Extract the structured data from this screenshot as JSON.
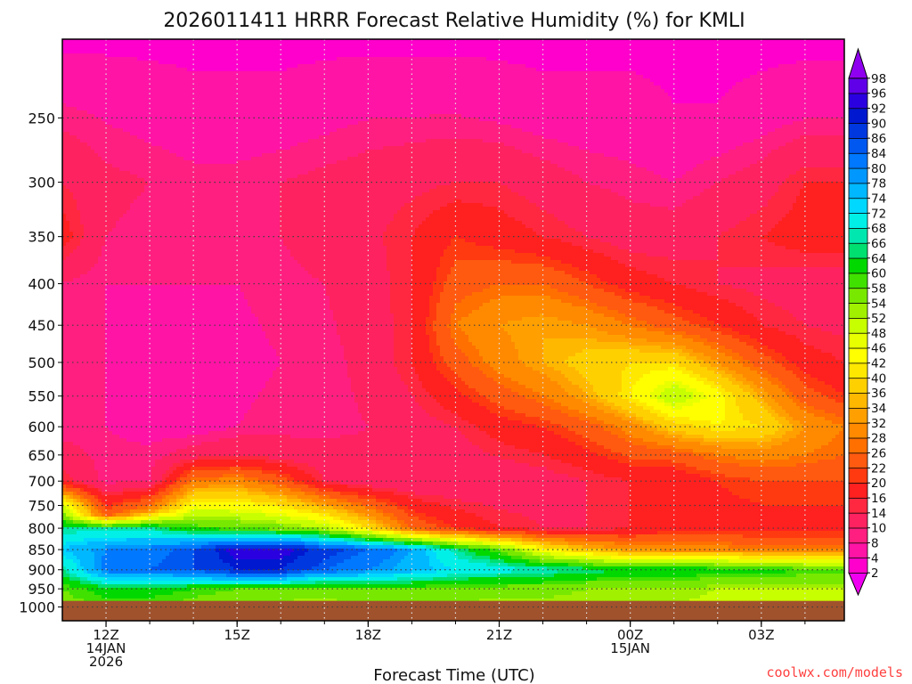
{
  "chart_data": {
    "type": "heatmap",
    "title": "2026011411 HRRR Forecast Relative Humidity (%) for KMLI",
    "xlabel": "Forecast Time (UTC)",
    "ylabel": "",
    "x_hours": [
      12,
      13,
      14,
      15,
      16,
      17,
      18,
      19,
      20,
      21,
      22,
      23,
      24,
      25,
      26,
      27,
      28
    ],
    "x_ticks": [
      {
        "hour": 12,
        "lines": [
          "12Z",
          "14JAN",
          "2026"
        ]
      },
      {
        "hour": 15,
        "lines": [
          "15Z"
        ]
      },
      {
        "hour": 18,
        "lines": [
          "18Z"
        ]
      },
      {
        "hour": 21,
        "lines": [
          "21Z"
        ]
      },
      {
        "hour": 24,
        "lines": [
          "00Z",
          "15JAN"
        ]
      },
      {
        "hour": 27,
        "lines": [
          "03Z"
        ]
      }
    ],
    "xlim": [
      11,
      28.9
    ],
    "y_ticks": [
      250,
      300,
      350,
      400,
      450,
      500,
      550,
      600,
      650,
      700,
      750,
      800,
      850,
      900,
      950,
      1000
    ],
    "ylim": [
      200,
      1040
    ],
    "y_scale": "log",
    "ground_pressure": 983,
    "grid": "dotted",
    "colorbar": {
      "levels": [
        2,
        4,
        8,
        10,
        14,
        16,
        20,
        22,
        26,
        28,
        32,
        34,
        36,
        40,
        42,
        46,
        48,
        52,
        54,
        58,
        60,
        64,
        66,
        68,
        72,
        74,
        78,
        80,
        84,
        86,
        90,
        92,
        96,
        98
      ],
      "colors": [
        "#f000f0",
        "#ff00cc",
        "#ff14a6",
        "#ff1f80",
        "#ff2260",
        "#ff2840",
        "#ff2020",
        "#ff3a10",
        "#ff5a10",
        "#ff7000",
        "#ff8a00",
        "#ffa000",
        "#ffb800",
        "#ffd000",
        "#ffe800",
        "#ffff00",
        "#e8ff00",
        "#c8ff00",
        "#a0f000",
        "#78e800",
        "#40e000",
        "#00d800",
        "#00e070",
        "#00e8b0",
        "#00f0e8",
        "#00d8ff",
        "#00b8ff",
        "#0098ff",
        "#0078ff",
        "#0058f0",
        "#0038e0",
        "#0018d0",
        "#2a00e0",
        "#6000e8",
        "#9000f0"
      ]
    },
    "columns": [
      {
        "hour": 11.0,
        "rh": [
          [
            200,
            3
          ],
          [
            240,
            8
          ],
          [
            300,
            14
          ],
          [
            350,
            18
          ],
          [
            400,
            10
          ],
          [
            500,
            8
          ],
          [
            600,
            8
          ],
          [
            700,
            16
          ],
          [
            750,
            48
          ],
          [
            800,
            66
          ],
          [
            850,
            74
          ],
          [
            900,
            66
          ],
          [
            950,
            58
          ],
          [
            1000,
            56
          ]
        ]
      },
      {
        "hour": 12.0,
        "rh": [
          [
            200,
            3
          ],
          [
            240,
            7
          ],
          [
            300,
            11
          ],
          [
            350,
            10
          ],
          [
            400,
            8
          ],
          [
            500,
            8
          ],
          [
            600,
            8
          ],
          [
            700,
            9
          ],
          [
            770,
            24
          ],
          [
            800,
            66
          ],
          [
            850,
            80
          ],
          [
            900,
            82
          ],
          [
            950,
            62
          ],
          [
            1000,
            58
          ]
        ]
      },
      {
        "hour": 13.0,
        "rh": [
          [
            200,
            3
          ],
          [
            240,
            6
          ],
          [
            300,
            10
          ],
          [
            350,
            9
          ],
          [
            400,
            8
          ],
          [
            500,
            7
          ],
          [
            600,
            7
          ],
          [
            700,
            10
          ],
          [
            760,
            30
          ],
          [
            800,
            66
          ],
          [
            850,
            82
          ],
          [
            900,
            84
          ],
          [
            950,
            62
          ],
          [
            1000,
            58
          ]
        ]
      },
      {
        "hour": 14.0,
        "rh": [
          [
            200,
            3
          ],
          [
            240,
            5
          ],
          [
            300,
            9
          ],
          [
            350,
            9
          ],
          [
            400,
            8
          ],
          [
            500,
            6
          ],
          [
            550,
            5
          ],
          [
            600,
            6
          ],
          [
            650,
            12
          ],
          [
            700,
            28
          ],
          [
            800,
            60
          ],
          [
            850,
            86
          ],
          [
            900,
            86
          ],
          [
            950,
            60
          ],
          [
            1000,
            56
          ]
        ]
      },
      {
        "hour": 15.0,
        "rh": [
          [
            200,
            3
          ],
          [
            240,
            5
          ],
          [
            300,
            9
          ],
          [
            350,
            9
          ],
          [
            400,
            8
          ],
          [
            500,
            7
          ],
          [
            600,
            8
          ],
          [
            650,
            14
          ],
          [
            700,
            30
          ],
          [
            800,
            58
          ],
          [
            850,
            94
          ],
          [
            900,
            90
          ],
          [
            950,
            58
          ],
          [
            1000,
            54
          ]
        ]
      },
      {
        "hour": 16.0,
        "rh": [
          [
            200,
            3
          ],
          [
            240,
            5
          ],
          [
            300,
            10
          ],
          [
            350,
            10
          ],
          [
            400,
            9
          ],
          [
            500,
            8
          ],
          [
            600,
            9
          ],
          [
            650,
            12
          ],
          [
            700,
            24
          ],
          [
            800,
            56
          ],
          [
            850,
            94
          ],
          [
            900,
            90
          ],
          [
            950,
            58
          ],
          [
            1000,
            52
          ]
        ]
      },
      {
        "hour": 17.0,
        "rh": [
          [
            200,
            3
          ],
          [
            240,
            6
          ],
          [
            300,
            11
          ],
          [
            350,
            12
          ],
          [
            400,
            10
          ],
          [
            500,
            9
          ],
          [
            600,
            9
          ],
          [
            700,
            14
          ],
          [
            800,
            52
          ],
          [
            850,
            88
          ],
          [
            900,
            84
          ],
          [
            950,
            56
          ],
          [
            1000,
            52
          ]
        ]
      },
      {
        "hour": 18.0,
        "rh": [
          [
            200,
            3
          ],
          [
            240,
            7
          ],
          [
            300,
            12
          ],
          [
            350,
            13
          ],
          [
            400,
            12
          ],
          [
            500,
            11
          ],
          [
            600,
            10
          ],
          [
            700,
            11
          ],
          [
            800,
            40
          ],
          [
            850,
            84
          ],
          [
            900,
            80
          ],
          [
            950,
            58
          ],
          [
            1000,
            54
          ]
        ]
      },
      {
        "hour": 19.0,
        "rh": [
          [
            200,
            3
          ],
          [
            240,
            7
          ],
          [
            300,
            13
          ],
          [
            350,
            16
          ],
          [
            400,
            16
          ],
          [
            500,
            16
          ],
          [
            600,
            12
          ],
          [
            700,
            10
          ],
          [
            800,
            26
          ],
          [
            850,
            78
          ],
          [
            900,
            76
          ],
          [
            950,
            58
          ],
          [
            1000,
            54
          ]
        ]
      },
      {
        "hour": 20.0,
        "rh": [
          [
            200,
            3
          ],
          [
            240,
            7
          ],
          [
            300,
            14
          ],
          [
            350,
            20
          ],
          [
            400,
            24
          ],
          [
            450,
            28
          ],
          [
            500,
            24
          ],
          [
            600,
            14
          ],
          [
            700,
            10
          ],
          [
            800,
            20
          ],
          [
            850,
            66
          ],
          [
            900,
            72
          ],
          [
            950,
            56
          ],
          [
            1000,
            54
          ]
        ]
      },
      {
        "hour": 21.0,
        "rh": [
          [
            200,
            3
          ],
          [
            240,
            6
          ],
          [
            300,
            14
          ],
          [
            350,
            18
          ],
          [
            400,
            26
          ],
          [
            450,
            32
          ],
          [
            500,
            30
          ],
          [
            600,
            18
          ],
          [
            700,
            11
          ],
          [
            800,
            16
          ],
          [
            850,
            58
          ],
          [
            900,
            70
          ],
          [
            950,
            56
          ],
          [
            1000,
            52
          ]
        ]
      },
      {
        "hour": 22.0,
        "rh": [
          [
            200,
            3
          ],
          [
            240,
            5
          ],
          [
            300,
            12
          ],
          [
            350,
            16
          ],
          [
            400,
            26
          ],
          [
            450,
            34
          ],
          [
            500,
            34
          ],
          [
            550,
            28
          ],
          [
            600,
            20
          ],
          [
            700,
            12
          ],
          [
            800,
            14
          ],
          [
            850,
            44
          ],
          [
            900,
            68
          ],
          [
            950,
            56
          ],
          [
            1000,
            52
          ]
        ]
      },
      {
        "hour": 23.0,
        "rh": [
          [
            200,
            3
          ],
          [
            240,
            5
          ],
          [
            300,
            10
          ],
          [
            350,
            14
          ],
          [
            400,
            22
          ],
          [
            450,
            32
          ],
          [
            500,
            38
          ],
          [
            550,
            34
          ],
          [
            600,
            24
          ],
          [
            700,
            14
          ],
          [
            800,
            14
          ],
          [
            850,
            36
          ],
          [
            900,
            66
          ],
          [
            950,
            54
          ],
          [
            1000,
            52
          ]
        ]
      },
      {
        "hour": 24.0,
        "rh": [
          [
            200,
            3
          ],
          [
            240,
            5
          ],
          [
            300,
            9
          ],
          [
            350,
            12
          ],
          [
            400,
            18
          ],
          [
            450,
            28
          ],
          [
            500,
            40
          ],
          [
            550,
            42
          ],
          [
            600,
            30
          ],
          [
            700,
            16
          ],
          [
            800,
            16
          ],
          [
            850,
            32
          ],
          [
            900,
            64
          ],
          [
            950,
            54
          ],
          [
            1000,
            52
          ]
        ]
      },
      {
        "hour": 25.0,
        "rh": [
          [
            200,
            3
          ],
          [
            240,
            4
          ],
          [
            300,
            8
          ],
          [
            350,
            12
          ],
          [
            400,
            16
          ],
          [
            450,
            24
          ],
          [
            500,
            40
          ],
          [
            550,
            52
          ],
          [
            600,
            38
          ],
          [
            650,
            24
          ],
          [
            700,
            16
          ],
          [
            800,
            18
          ],
          [
            850,
            30
          ],
          [
            900,
            64
          ],
          [
            950,
            54
          ],
          [
            1000,
            52
          ]
        ]
      },
      {
        "hour": 26.0,
        "rh": [
          [
            200,
            3
          ],
          [
            240,
            4
          ],
          [
            300,
            10
          ],
          [
            350,
            14
          ],
          [
            400,
            14
          ],
          [
            450,
            20
          ],
          [
            500,
            32
          ],
          [
            550,
            44
          ],
          [
            600,
            42
          ],
          [
            650,
            28
          ],
          [
            700,
            20
          ],
          [
            800,
            18
          ],
          [
            850,
            30
          ],
          [
            900,
            62
          ],
          [
            950,
            52
          ],
          [
            1000,
            50
          ]
        ]
      },
      {
        "hour": 27.0,
        "rh": [
          [
            200,
            3
          ],
          [
            240,
            5
          ],
          [
            300,
            12
          ],
          [
            350,
            16
          ],
          [
            400,
            13
          ],
          [
            450,
            16
          ],
          [
            500,
            24
          ],
          [
            550,
            34
          ],
          [
            600,
            40
          ],
          [
            650,
            30
          ],
          [
            700,
            22
          ],
          [
            800,
            18
          ],
          [
            850,
            28
          ],
          [
            900,
            62
          ],
          [
            950,
            52
          ],
          [
            1000,
            50
          ]
        ]
      },
      {
        "hour": 28.0,
        "rh": [
          [
            200,
            3
          ],
          [
            240,
            6
          ],
          [
            300,
            16
          ],
          [
            350,
            18
          ],
          [
            400,
            12
          ],
          [
            450,
            14
          ],
          [
            500,
            18
          ],
          [
            550,
            24
          ],
          [
            600,
            32
          ],
          [
            650,
            28
          ],
          [
            700,
            22
          ],
          [
            800,
            18
          ],
          [
            850,
            28
          ],
          [
            900,
            60
          ],
          [
            950,
            52
          ],
          [
            1000,
            50
          ]
        ]
      },
      {
        "hour": 28.9,
        "rh": [
          [
            200,
            3
          ],
          [
            240,
            6
          ],
          [
            300,
            16
          ],
          [
            350,
            18
          ],
          [
            400,
            12
          ],
          [
            450,
            13
          ],
          [
            500,
            16
          ],
          [
            550,
            20
          ],
          [
            600,
            28
          ],
          [
            650,
            26
          ],
          [
            700,
            22
          ],
          [
            800,
            18
          ],
          [
            850,
            28
          ],
          [
            900,
            60
          ],
          [
            950,
            52
          ],
          [
            1000,
            50
          ]
        ]
      }
    ]
  },
  "credit": "coolwx.com/models",
  "colors": {
    "frame": "#000000",
    "ground": "#a0522d",
    "credit": "#ff4040",
    "grid": "#404040"
  }
}
